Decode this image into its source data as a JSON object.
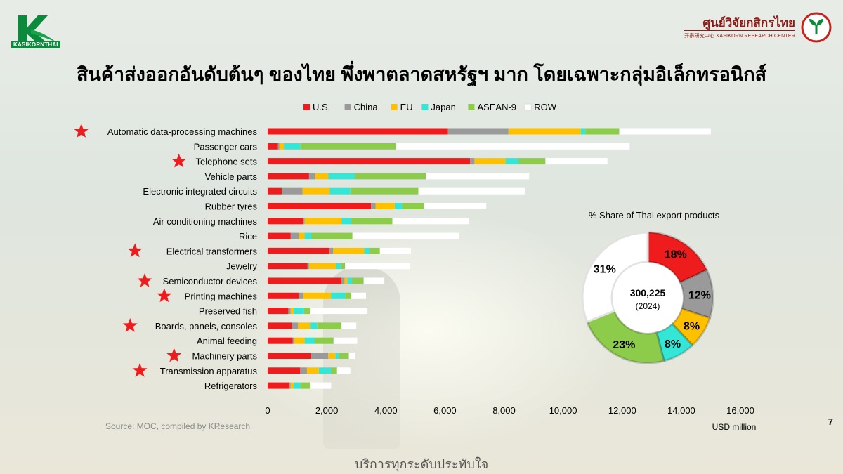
{
  "header": {
    "left_logo_text": "KASIKORNTHAI",
    "right_logo_main": "ศูนย์วิจัยกสิกรไทย",
    "right_logo_sub": "开泰研究中心 KASIKORN RESEARCH CENTER"
  },
  "title": "สินค้าส่งออกอันดับต้นๆ ของไทย พึ่งพาตลาดสหรัฐฯ มาก โดยเฉพาะกลุ่มอิเล็กทรอนิกส์",
  "source": "Source: MOC, compiled by KResearch",
  "page_number": "7",
  "tagline": "บริการทุกระดับประทับใจ",
  "colors": {
    "US": "#ee1c1c",
    "China": "#9a9a9a",
    "EU": "#ffc000",
    "Japan": "#33e6d6",
    "ASEAN-9": "#8ccc4a",
    "ROW": "#ffffff",
    "star": "#ee1c1c"
  },
  "chart_data": [
    {
      "type": "bar",
      "orientation": "horizontal",
      "stacked": true,
      "xlabel": "USD million",
      "xlim": [
        0,
        16000
      ],
      "xticks": [
        0,
        2000,
        4000,
        6000,
        8000,
        10000,
        12000,
        14000,
        16000
      ],
      "xtick_labels": [
        "0",
        "2,000",
        "4,000",
        "6,000",
        "8,000",
        "10,000",
        "12,000",
        "14,000",
        "16,000"
      ],
      "legend_position": "top",
      "categories": [
        "Automatic data-processing machines",
        "Passenger cars",
        "Telephone sets",
        "Vehicle parts",
        "Electronic integrated circuits",
        "Rubber tyres",
        "Air conditioning machines",
        "Rice",
        "Electrical transformers",
        "Jewelry",
        "Semiconductor devices",
        "Printing machines",
        "Preserved fish",
        "Boards, panels, consoles",
        "Animal feeding",
        "Machinery parts",
        "Transmission apparatus",
        "Refrigerators"
      ],
      "starred": [
        true,
        false,
        true,
        false,
        false,
        false,
        false,
        false,
        true,
        false,
        true,
        true,
        false,
        true,
        false,
        true,
        true,
        false
      ],
      "series": [
        {
          "name": "U.S.",
          "values": [
            6100,
            350,
            6850,
            1400,
            480,
            3500,
            1200,
            780,
            2100,
            1350,
            2500,
            1050,
            700,
            830,
            850,
            1450,
            1100,
            730
          ]
        },
        {
          "name": "China",
          "values": [
            2050,
            50,
            150,
            200,
            700,
            150,
            50,
            270,
            120,
            50,
            100,
            150,
            80,
            200,
            50,
            600,
            230,
            50
          ]
        },
        {
          "name": "EU",
          "values": [
            2450,
            150,
            1050,
            450,
            920,
            650,
            1250,
            200,
            1050,
            920,
            100,
            950,
            100,
            400,
            350,
            250,
            400,
            100
          ]
        },
        {
          "name": "Japan",
          "values": [
            150,
            550,
            450,
            900,
            700,
            250,
            320,
            220,
            180,
            150,
            150,
            480,
            350,
            250,
            330,
            100,
            420,
            220
          ]
        },
        {
          "name": "ASEAN-9",
          "values": [
            1150,
            3250,
            900,
            2400,
            2300,
            750,
            1400,
            1400,
            350,
            150,
            400,
            200,
            200,
            820,
            650,
            350,
            200,
            330
          ]
        },
        {
          "name": "ROW",
          "values": [
            3100,
            7900,
            2100,
            3500,
            3600,
            2100,
            2600,
            3600,
            1050,
            2200,
            700,
            500,
            1950,
            500,
            800,
            200,
            450,
            720
          ]
        }
      ]
    },
    {
      "type": "pie",
      "donut": true,
      "title": "% Share of Thai export products",
      "center_value": "300,225",
      "center_label": "(2024)",
      "categories": [
        "U.S.",
        "China",
        "EU",
        "Japan",
        "ASEAN-9",
        "ROW"
      ],
      "values": [
        18,
        12,
        8,
        8,
        23,
        31
      ],
      "labels": [
        "18%",
        "12%",
        "8%",
        "8%",
        "23%",
        "31%"
      ]
    }
  ]
}
